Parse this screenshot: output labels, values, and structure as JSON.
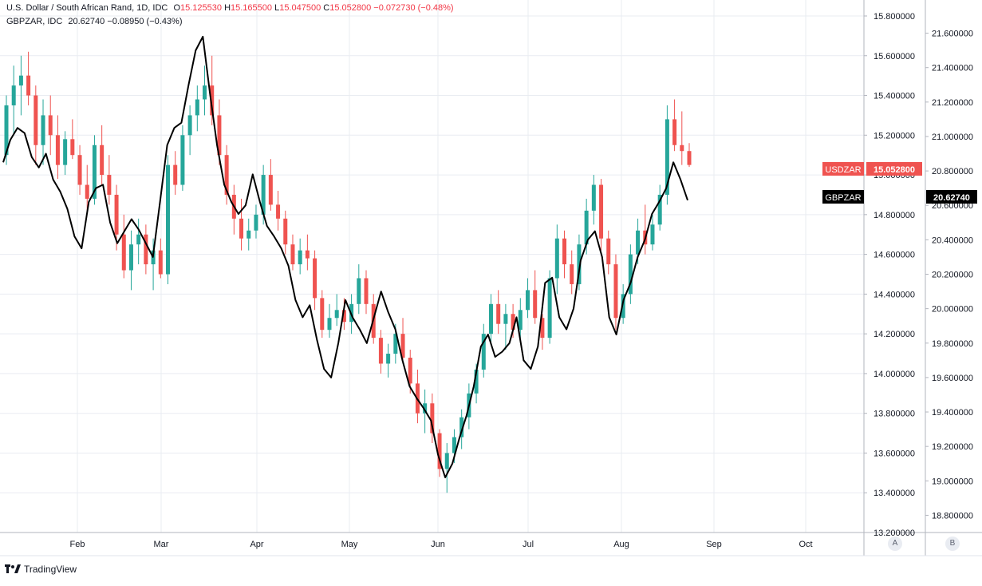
{
  "legend": {
    "usdzar": {
      "name": "U.S. Dollar / South African Rand, 1D, IDC",
      "o_label": "O",
      "o": "15.125530",
      "h_label": "H",
      "h": "15.165500",
      "l_label": "L",
      "l": "15.047500",
      "c_label": "C",
      "c": "15.052800",
      "chg": "−0.072730 (−0.48%)"
    },
    "gbpzar": {
      "name": "GBPZAR, IDC",
      "value": "20.62740",
      "chg": "−0.08950 (−0.43%)"
    }
  },
  "price_tags": {
    "usdzar_symbol": "USDZAR",
    "usdzar_value": "15.052800",
    "gbpzar_symbol": "GBPZAR",
    "gbpzar_value": "20.62740"
  },
  "axis_buttons": {
    "a": "A",
    "b": "B"
  },
  "branding": "TradingView",
  "colors": {
    "up": "#26a69a",
    "down": "#ef5350",
    "line": "#000000",
    "tag_red": "#ef5350",
    "tag_black": "#000000",
    "grid": "#e9ecf2"
  },
  "chart_data": {
    "type": "candlestick+line",
    "x_tick_labels": [
      "Feb",
      "Mar",
      "Apr",
      "May",
      "Jun",
      "Jul",
      "Aug",
      "Sep",
      "Oct"
    ],
    "y_left_ticks": [
      "13.200000",
      "13.400000",
      "13.600000",
      "13.800000",
      "14.000000",
      "14.200000",
      "14.400000",
      "14.600000",
      "14.800000",
      "15.000000",
      "15.200000",
      "15.400000",
      "15.600000",
      "15.800000"
    ],
    "y_left_range": [
      13.2,
      15.8
    ],
    "y_right_ticks": [
      "18.800000",
      "19.000000",
      "19.200000",
      "19.400000",
      "19.600000",
      "19.800000",
      "20.000000",
      "20.200000",
      "20.400000",
      "20.600000",
      "20.800000",
      "21.000000",
      "21.200000",
      "21.400000",
      "21.600000"
    ],
    "y_right_range": [
      18.7,
      21.7
    ],
    "grid": true,
    "series": [
      {
        "name": "USDZAR",
        "kind": "candlestick",
        "axis": "left",
        "ohlc": [
          [
            15.1,
            15.4,
            15.05,
            15.35
          ],
          [
            15.35,
            15.55,
            15.2,
            15.45
          ],
          [
            15.45,
            15.6,
            15.3,
            15.5
          ],
          [
            15.5,
            15.62,
            15.35,
            15.4
          ],
          [
            15.4,
            15.45,
            15.05,
            15.15
          ],
          [
            15.15,
            15.38,
            15.05,
            15.3
          ],
          [
            15.3,
            15.4,
            15.1,
            15.2
          ],
          [
            15.2,
            15.3,
            14.98,
            15.05
          ],
          [
            15.05,
            15.22,
            15.0,
            15.18
          ],
          [
            15.18,
            15.28,
            15.08,
            15.1
          ],
          [
            15.1,
            15.15,
            14.9,
            14.95
          ],
          [
            14.95,
            15.05,
            14.82,
            14.88
          ],
          [
            14.88,
            15.2,
            14.85,
            15.15
          ],
          [
            15.15,
            15.25,
            14.95,
            15.0
          ],
          [
            15.0,
            15.1,
            14.85,
            14.9
          ],
          [
            14.9,
            14.95,
            14.62,
            14.7
          ],
          [
            14.7,
            14.8,
            14.48,
            14.52
          ],
          [
            14.52,
            14.72,
            14.42,
            14.65
          ],
          [
            14.65,
            14.78,
            14.55,
            14.7
          ],
          [
            14.7,
            14.75,
            14.5,
            14.55
          ],
          [
            14.55,
            14.68,
            14.42,
            14.62
          ],
          [
            14.62,
            14.68,
            14.48,
            14.5
          ],
          [
            14.5,
            15.1,
            14.45,
            15.05
          ],
          [
            15.05,
            15.12,
            14.9,
            14.95
          ],
          [
            14.95,
            15.25,
            14.92,
            15.2
          ],
          [
            15.2,
            15.35,
            15.1,
            15.3
          ],
          [
            15.3,
            15.45,
            15.22,
            15.38
          ],
          [
            15.38,
            15.55,
            15.3,
            15.45
          ],
          [
            15.45,
            15.6,
            15.25,
            15.3
          ],
          [
            15.3,
            15.38,
            15.05,
            15.1
          ],
          [
            15.1,
            15.15,
            14.85,
            14.9
          ],
          [
            14.9,
            14.95,
            14.7,
            14.78
          ],
          [
            14.78,
            14.88,
            14.62,
            14.68
          ],
          [
            14.68,
            14.78,
            14.62,
            14.72
          ],
          [
            14.72,
            14.85,
            14.68,
            14.8
          ],
          [
            14.8,
            15.05,
            14.75,
            15.0
          ],
          [
            15.0,
            15.08,
            14.82,
            14.85
          ],
          [
            14.85,
            14.92,
            14.72,
            14.78
          ],
          [
            14.78,
            14.82,
            14.6,
            14.65
          ],
          [
            14.65,
            14.7,
            14.52,
            14.55
          ],
          [
            14.55,
            14.68,
            14.5,
            14.62
          ],
          [
            14.62,
            14.7,
            14.52,
            14.58
          ],
          [
            14.58,
            14.62,
            14.32,
            14.38
          ],
          [
            14.38,
            14.42,
            14.18,
            14.22
          ],
          [
            14.22,
            14.35,
            14.18,
            14.28
          ],
          [
            14.28,
            14.4,
            14.24,
            14.32
          ],
          [
            14.32,
            14.38,
            14.22,
            14.26
          ],
          [
            14.26,
            14.4,
            14.2,
            14.35
          ],
          [
            14.35,
            14.55,
            14.3,
            14.48
          ],
          [
            14.48,
            14.52,
            14.3,
            14.35
          ],
          [
            14.35,
            14.4,
            14.15,
            14.18
          ],
          [
            14.18,
            14.22,
            14.0,
            14.05
          ],
          [
            14.05,
            14.15,
            13.98,
            14.1
          ],
          [
            14.1,
            14.25,
            14.05,
            14.2
          ],
          [
            14.2,
            14.28,
            14.05,
            14.08
          ],
          [
            14.08,
            14.12,
            13.9,
            13.95
          ],
          [
            13.95,
            14.02,
            13.75,
            13.8
          ],
          [
            13.8,
            13.92,
            13.7,
            13.85
          ],
          [
            13.85,
            13.9,
            13.65,
            13.7
          ],
          [
            13.7,
            13.72,
            13.48,
            13.52
          ],
          [
            13.52,
            13.65,
            13.4,
            13.6
          ],
          [
            13.6,
            13.72,
            13.55,
            13.68
          ],
          [
            13.68,
            13.82,
            13.62,
            13.78
          ],
          [
            13.78,
            13.95,
            13.72,
            13.9
          ],
          [
            13.9,
            14.05,
            13.85,
            14.02
          ],
          [
            14.02,
            14.25,
            13.98,
            14.2
          ],
          [
            14.2,
            14.4,
            14.15,
            14.35
          ],
          [
            14.35,
            14.42,
            14.2,
            14.25
          ],
          [
            14.25,
            14.35,
            14.12,
            14.3
          ],
          [
            14.3,
            14.35,
            14.18,
            14.22
          ],
          [
            14.22,
            14.38,
            14.18,
            14.32
          ],
          [
            14.32,
            14.48,
            14.28,
            14.42
          ],
          [
            14.42,
            14.52,
            14.25,
            14.28
          ],
          [
            14.28,
            14.3,
            14.12,
            14.18
          ],
          [
            14.18,
            14.52,
            14.15,
            14.48
          ],
          [
            14.48,
            14.75,
            14.4,
            14.68
          ],
          [
            14.68,
            14.72,
            14.48,
            14.55
          ],
          [
            14.55,
            14.62,
            14.4,
            14.45
          ],
          [
            14.45,
            14.7,
            14.42,
            14.65
          ],
          [
            14.65,
            14.88,
            14.6,
            14.82
          ],
          [
            14.82,
            15.0,
            14.75,
            14.95
          ],
          [
            14.95,
            14.98,
            14.62,
            14.68
          ],
          [
            14.68,
            14.72,
            14.5,
            14.55
          ],
          [
            14.55,
            14.6,
            14.22,
            14.28
          ],
          [
            14.28,
            14.45,
            14.25,
            14.4
          ],
          [
            14.4,
            14.65,
            14.35,
            14.6
          ],
          [
            14.6,
            14.78,
            14.55,
            14.72
          ],
          [
            14.72,
            14.85,
            14.6,
            14.65
          ],
          [
            14.65,
            14.8,
            14.62,
            14.75
          ],
          [
            14.75,
            14.95,
            14.72,
            14.9
          ],
          [
            14.9,
            15.35,
            14.85,
            15.28
          ],
          [
            15.28,
            15.38,
            15.12,
            15.15
          ],
          [
            15.15,
            15.32,
            15.05,
            15.12
          ],
          [
            15.12,
            15.16,
            15.04,
            15.05
          ]
        ]
      },
      {
        "name": "GBPZAR",
        "kind": "line",
        "axis": "right",
        "values": [
          20.85,
          20.98,
          21.05,
          21.02,
          20.88,
          20.82,
          20.9,
          20.75,
          20.68,
          20.58,
          20.42,
          20.35,
          20.62,
          20.7,
          20.72,
          20.5,
          20.38,
          20.45,
          20.52,
          20.46,
          20.38,
          20.3,
          20.62,
          20.95,
          21.05,
          21.08,
          21.3,
          21.5,
          21.58,
          21.25,
          20.95,
          20.72,
          20.62,
          20.55,
          20.6,
          20.78,
          20.62,
          20.48,
          20.42,
          20.35,
          20.25,
          20.05,
          19.95,
          20.02,
          19.82,
          19.65,
          19.6,
          19.8,
          20.05,
          19.95,
          19.88,
          19.8,
          19.95,
          20.1,
          19.98,
          19.88,
          19.7,
          19.55,
          19.48,
          19.42,
          19.35,
          19.15,
          19.02,
          19.1,
          19.25,
          19.38,
          19.55,
          19.78,
          19.85,
          19.72,
          19.75,
          19.8,
          19.95,
          19.7,
          19.65,
          19.78,
          20.15,
          20.18,
          19.95,
          19.88,
          20.0,
          20.28,
          20.4,
          20.45,
          20.3,
          19.95,
          19.85,
          20.05,
          20.15,
          20.3,
          20.4,
          20.55,
          20.62,
          20.7,
          20.85,
          20.75,
          20.63
        ]
      }
    ]
  }
}
